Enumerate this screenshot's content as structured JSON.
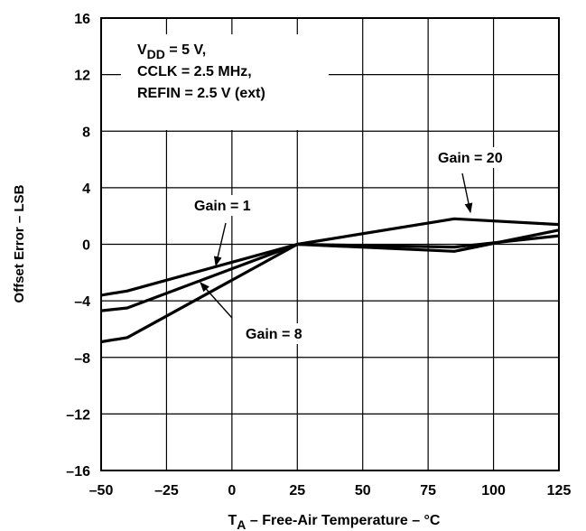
{
  "chart_data": {
    "type": "line",
    "title": "",
    "xlabel": {
      "base": "T",
      "sub": "A",
      "rest": " – Free-Air Temperature – °C"
    },
    "ylabel": "Offset Error – LSB",
    "xlim": [
      -50,
      125
    ],
    "ylim": [
      -16,
      16
    ],
    "grid": true,
    "xticks": [
      -50,
      -25,
      0,
      25,
      50,
      75,
      100,
      125
    ],
    "xtick_labels": [
      "–50",
      "–25",
      "0",
      "25",
      "50",
      "75",
      "100",
      "125"
    ],
    "yticks": [
      -16,
      -12,
      -8,
      -4,
      0,
      4,
      8,
      12,
      16
    ],
    "ytick_labels": [
      "–16",
      "–12",
      "–8",
      "–4",
      "0",
      "4",
      "8",
      "12",
      "16"
    ],
    "conditions": [
      {
        "base": "V",
        "sub": "DD",
        "rest": " = 5 V,"
      },
      {
        "base": "CCLK = 2.5 MHz,",
        "sub": "",
        "rest": ""
      },
      {
        "base": "REFIN = 2.5 V (ext)",
        "sub": "",
        "rest": ""
      }
    ],
    "series": [
      {
        "name": "Gain = 1",
        "x": [
          -50,
          -40,
          25,
          85,
          125
        ],
        "y": [
          -3.6,
          -3.3,
          0,
          -0.2,
          0.6
        ]
      },
      {
        "name": "Gain = 8",
        "x": [
          -50,
          -40,
          25,
          85,
          125
        ],
        "y": [
          -4.7,
          -4.5,
          0,
          -0.5,
          1.0
        ]
      },
      {
        "name": "Gain = 20",
        "x": [
          -50,
          -40,
          25,
          85,
          125
        ],
        "y": [
          -6.9,
          -6.6,
          0,
          1.8,
          1.4
        ]
      }
    ],
    "annotations": [
      {
        "text": "Gain = 1",
        "series": "Gain = 1"
      },
      {
        "text": "Gain = 8",
        "series": "Gain = 8"
      },
      {
        "text": "Gain = 20",
        "series": "Gain = 20"
      }
    ]
  }
}
